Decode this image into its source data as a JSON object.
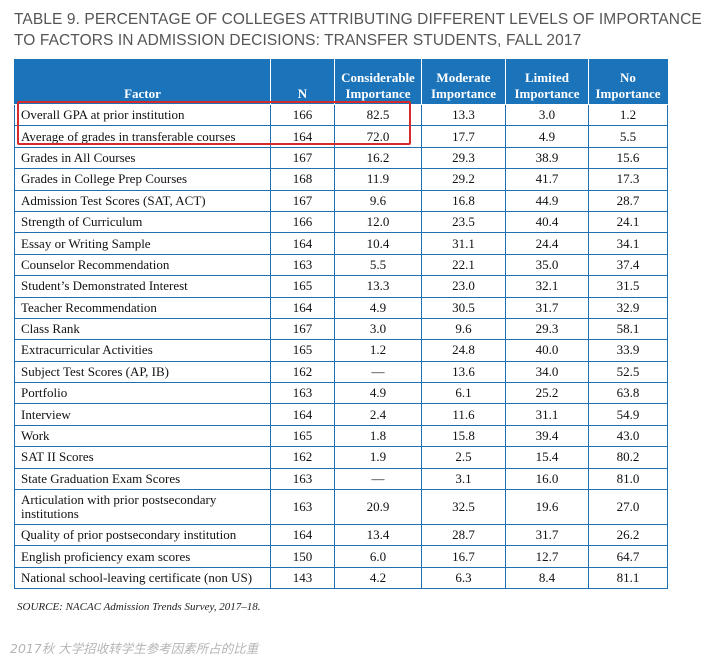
{
  "title": {
    "line1": "TABLE 9. PERCENTAGE OF COLLEGES ATTRIBUTING DIFFERENT LEVELS OF IMPORTANCE",
    "line2": "TO FACTORS IN ADMISSION DECISIONS: TRANSFER STUDENTS, FALL 2017"
  },
  "table": {
    "headers": {
      "factor": "Factor",
      "n": "N",
      "considerable": [
        "Considerable",
        "Importance"
      ],
      "moderate": [
        "Moderate",
        "Importance"
      ],
      "limited": [
        "Limited",
        "Importance"
      ],
      "no": [
        "No",
        "Importance"
      ]
    },
    "rows": [
      {
        "factor": "Overall GPA at prior institution",
        "n": "166",
        "c": "82.5",
        "m": "13.3",
        "l": "3.0",
        "no": "1.2"
      },
      {
        "factor": "Average of grades in transferable courses",
        "n": "164",
        "c": "72.0",
        "m": "17.7",
        "l": "4.9",
        "no": "5.5"
      },
      {
        "factor": "Grades in All Courses",
        "n": "167",
        "c": "16.2",
        "m": "29.3",
        "l": "38.9",
        "no": "15.6"
      },
      {
        "factor": "Grades in College Prep Courses",
        "n": "168",
        "c": "11.9",
        "m": "29.2",
        "l": "41.7",
        "no": "17.3"
      },
      {
        "factor": "Admission Test Scores (SAT, ACT)",
        "n": "167",
        "c": "9.6",
        "m": "16.8",
        "l": "44.9",
        "no": "28.7"
      },
      {
        "factor": "Strength of Curriculum",
        "n": "166",
        "c": "12.0",
        "m": "23.5",
        "l": "40.4",
        "no": "24.1"
      },
      {
        "factor": "Essay or Writing Sample",
        "n": "164",
        "c": "10.4",
        "m": "31.1",
        "l": "24.4",
        "no": "34.1"
      },
      {
        "factor": "Counselor Recommendation",
        "n": "163",
        "c": "5.5",
        "m": "22.1",
        "l": "35.0",
        "no": "37.4"
      },
      {
        "factor": "Student’s Demonstrated Interest",
        "n": "165",
        "c": "13.3",
        "m": "23.0",
        "l": "32.1",
        "no": "31.5"
      },
      {
        "factor": "Teacher Recommendation",
        "n": "164",
        "c": "4.9",
        "m": "30.5",
        "l": "31.7",
        "no": "32.9"
      },
      {
        "factor": "Class Rank",
        "n": "167",
        "c": "3.0",
        "m": "9.6",
        "l": "29.3",
        "no": "58.1"
      },
      {
        "factor": "Extracurricular Activities",
        "n": "165",
        "c": "1.2",
        "m": "24.8",
        "l": "40.0",
        "no": "33.9"
      },
      {
        "factor": "Subject Test Scores (AP, IB)",
        "n": "162",
        "c": "—",
        "m": "13.6",
        "l": "34.0",
        "no": "52.5"
      },
      {
        "factor": "Portfolio",
        "n": "163",
        "c": "4.9",
        "m": "6.1",
        "l": "25.2",
        "no": "63.8"
      },
      {
        "factor": "Interview",
        "n": "164",
        "c": "2.4",
        "m": "11.6",
        "l": "31.1",
        "no": "54.9"
      },
      {
        "factor": "Work",
        "n": "165",
        "c": "1.8",
        "m": "15.8",
        "l": "39.4",
        "no": "43.0"
      },
      {
        "factor": "SAT II Scores",
        "n": "162",
        "c": "1.9",
        "m": "2.5",
        "l": "15.4",
        "no": "80.2"
      },
      {
        "factor": "State Graduation Exam Scores",
        "n": "163",
        "c": "—",
        "m": "3.1",
        "l": "16.0",
        "no": "81.0"
      },
      {
        "factor": "Articulation with prior postsecondary institutions",
        "n": "163",
        "c": "20.9",
        "m": "32.5",
        "l": "19.6",
        "no": "27.0"
      },
      {
        "factor": "Quality of prior postsecondary institution",
        "n": "164",
        "c": "13.4",
        "m": "28.7",
        "l": "31.7",
        "no": "26.2"
      },
      {
        "factor": "English proficiency exam scores",
        "n": "150",
        "c": "6.0",
        "m": "16.7",
        "l": "12.7",
        "no": "64.7"
      },
      {
        "factor": "National school-leaving certificate (non US)",
        "n": "143",
        "c": "4.2",
        "m": "6.3",
        "l": "8.4",
        "no": "81.1"
      }
    ]
  },
  "source": "SOURCE: NACAC Admission Trends Survey, 2017–18.",
  "caption": "2017秋 大学招收转学生参考因素所占的比重",
  "colors": {
    "header_bg": "#1b73ba",
    "highlight": "#d62b2b",
    "grid": "#1f6fb3"
  }
}
